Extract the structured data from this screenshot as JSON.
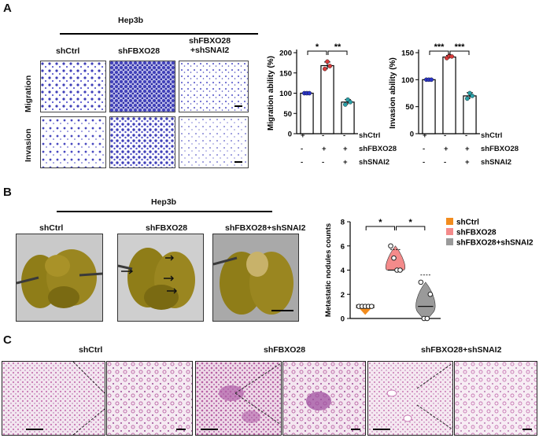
{
  "panels": {
    "a": {
      "letter": "A",
      "cell_line": "Hep3b",
      "groups": [
        "shCtrl",
        "shFBXO28",
        "shFBXO28\n+shSNAI2"
      ],
      "rows": [
        "Migration",
        "Invasion"
      ],
      "conditions": {
        "labels": [
          "shCtrl",
          "shFBXO28",
          "shSNAI2"
        ],
        "matrix": [
          [
            "+",
            "-",
            "-"
          ],
          [
            "-",
            "+",
            "+"
          ],
          [
            "-",
            "-",
            "+"
          ]
        ]
      }
    },
    "b": {
      "letter": "B",
      "cell_line": "Hep3b",
      "groups": [
        "shCtrl",
        "shFBXO28",
        "shFBXO28+shSNAI2"
      ]
    },
    "c": {
      "letter": "C",
      "groups": [
        "shCtrl",
        "shFBXO28",
        "shFBXO28+shSNAI2"
      ]
    }
  },
  "colors": {
    "stain_purple": "#3f3fb8",
    "lung_olive": "#8f7d18",
    "he_pink": "#c878b4",
    "orange": "#f28c1e",
    "salmon": "#f48b8b",
    "grey": "#9a9a9a",
    "blue_dot": "#2a34c8",
    "red_dot": "#d83a3a",
    "teal_dot": "#2aa0a8"
  },
  "chart_data": [
    {
      "type": "bar",
      "categories": [
        "shCtrl",
        "shFBXO28",
        "shFBXO28+shSNAI2"
      ],
      "values": [
        100,
        168,
        78
      ],
      "errors": [
        1,
        9,
        6
      ],
      "points": [
        [
          100,
          100,
          100
        ],
        [
          160,
          178,
          167
        ],
        [
          72,
          84,
          78
        ]
      ],
      "ylabel": "Migration ability (%)",
      "ylim": [
        0,
        200
      ],
      "yticks": [
        0,
        50,
        100,
        150,
        200
      ],
      "significance": [
        {
          "from": 0,
          "to": 1,
          "label": "*"
        },
        {
          "from": 1,
          "to": 2,
          "label": "**"
        }
      ],
      "title": "",
      "xlabel": ""
    },
    {
      "type": "bar",
      "categories": [
        "shCtrl",
        "shFBXO28",
        "shFBXO28+shSNAI2"
      ],
      "values": [
        100,
        142,
        70
      ],
      "errors": [
        1,
        3,
        6
      ],
      "points": [
        [
          100,
          100,
          100
        ],
        [
          140,
          144,
          143
        ],
        [
          65,
          75,
          70
        ]
      ],
      "ylabel": "Invasion ability (%)",
      "ylim": [
        0,
        150
      ],
      "yticks": [
        0,
        50,
        100,
        150
      ],
      "significance": [
        {
          "from": 0,
          "to": 1,
          "label": "***"
        },
        {
          "from": 1,
          "to": 2,
          "label": "***"
        }
      ],
      "title": "",
      "xlabel": ""
    },
    {
      "type": "violin",
      "categories": [
        "shCtrl",
        "shFBXO28",
        "shFBXO28+shSNAI2"
      ],
      "series": [
        {
          "name": "shCtrl",
          "points": [
            1,
            1,
            1,
            1,
            1
          ],
          "median": 1,
          "q1": 0.5,
          "q3": 1
        },
        {
          "name": "shFBXO28",
          "points": [
            6,
            5,
            4,
            4
          ],
          "median": 4,
          "q1": 4,
          "q3": 5.7
        },
        {
          "name": "shFBXO28+shSNAI2",
          "points": [
            3,
            0,
            0,
            2
          ],
          "median": 1,
          "q1": 0,
          "q3": 3.6
        }
      ],
      "ylabel": "Metastatic nodules counts",
      "ylim": [
        0,
        8
      ],
      "yticks": [
        0,
        2,
        4,
        6,
        8
      ],
      "legend": [
        "shCtrl",
        "shFBXO28",
        "shFBXO28+shSNAI2"
      ],
      "legend_position": "right",
      "significance": [
        {
          "from": 0,
          "to": 1,
          "label": "*"
        },
        {
          "from": 1,
          "to": 2,
          "label": "*"
        }
      ],
      "title": "",
      "xlabel": ""
    }
  ]
}
